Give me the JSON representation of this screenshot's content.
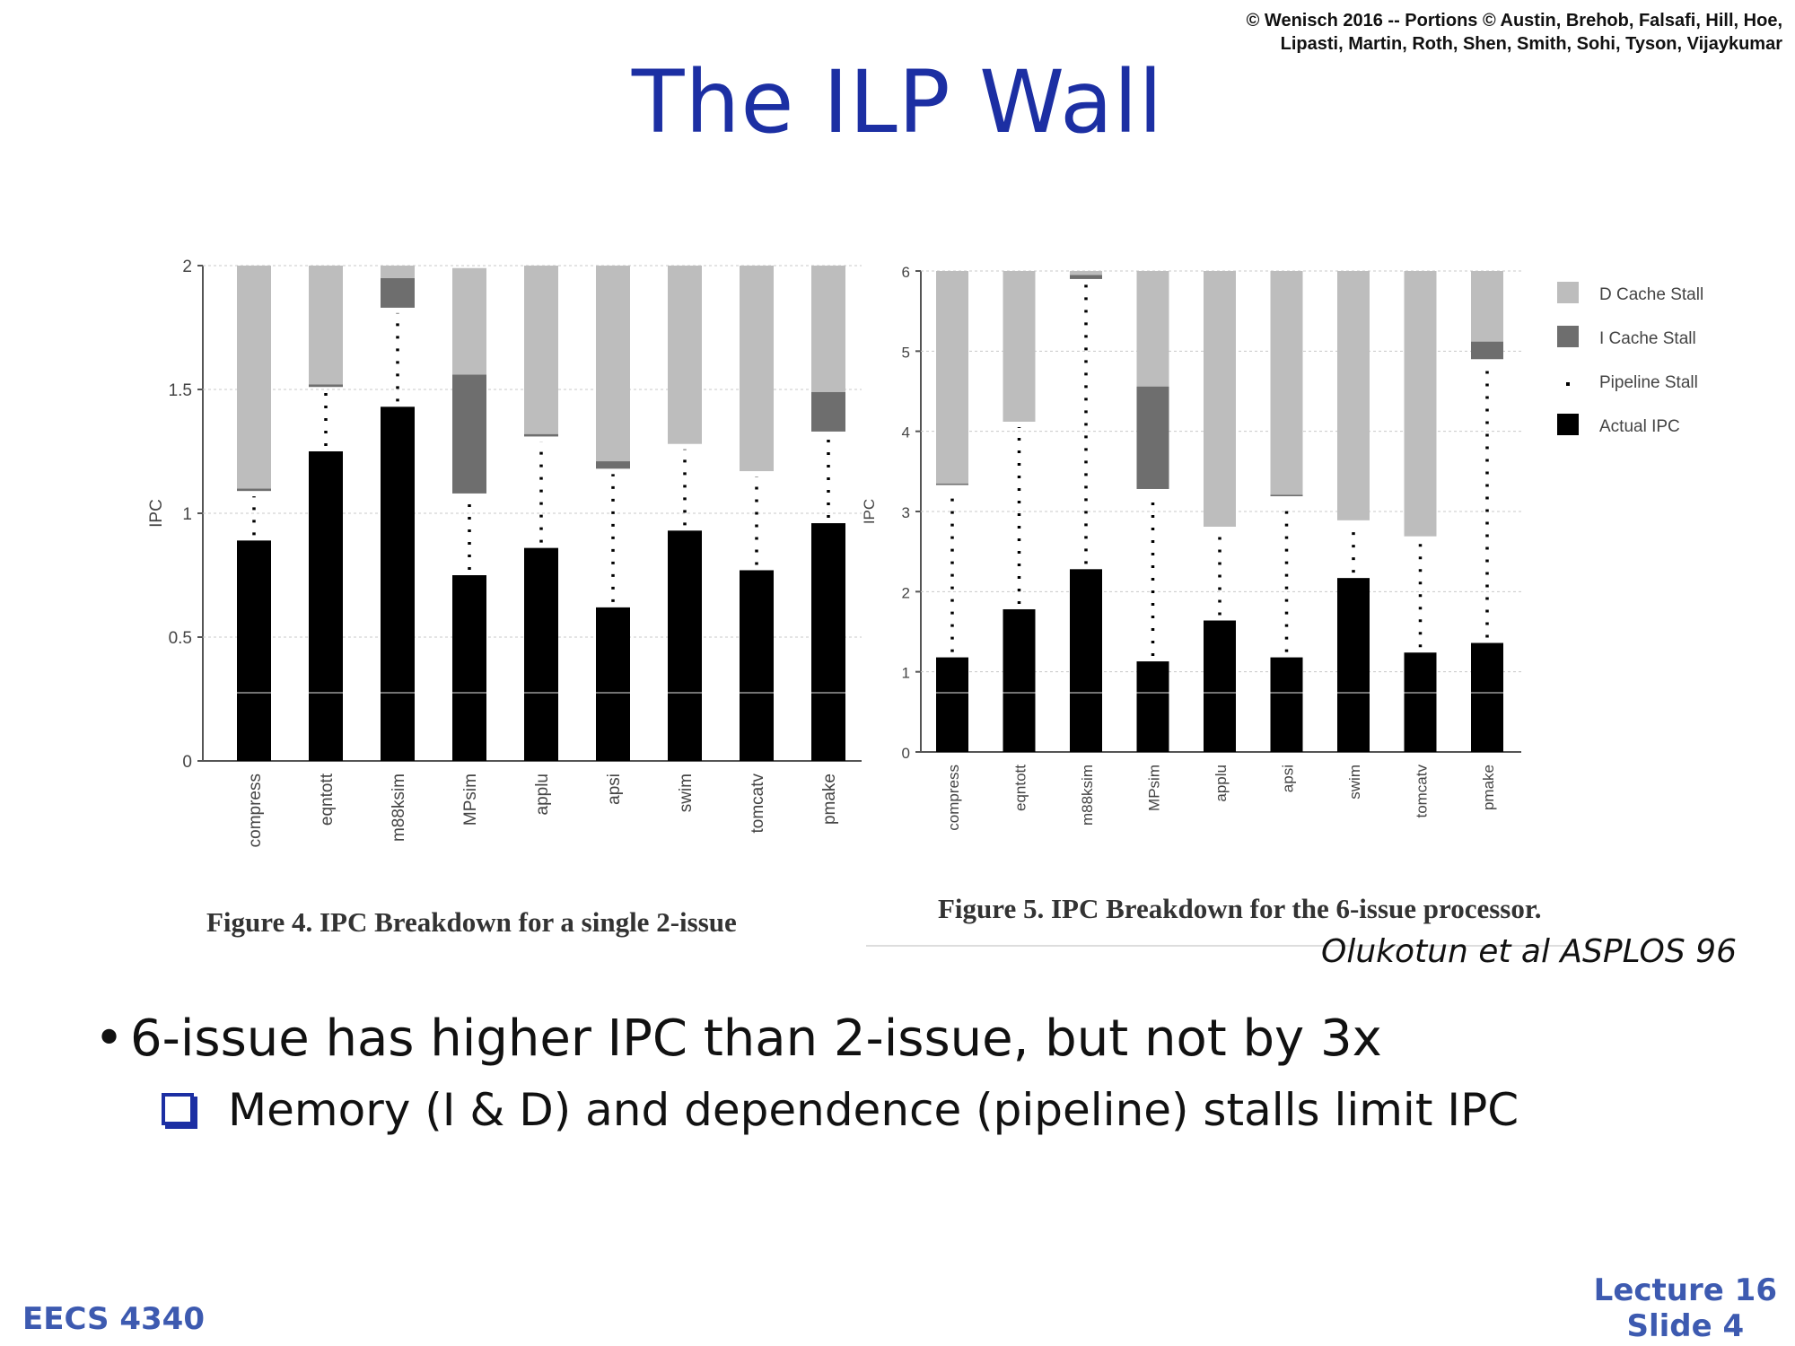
{
  "copyright": {
    "line1": "© Wenisch 2016 -- Portions © Austin, Brehob, Falsafi, Hill, Hoe,",
    "line2": "Lipasti, Martin, Roth, Shen, Smith, Sohi, Tyson, Vijaykumar"
  },
  "title": "The ILP Wall",
  "captions": {
    "fig4": "Figure 4.   IPC Breakdown for a single 2-issue",
    "fig5": "Figure 5.   IPC Breakdown for the 6-issue processor."
  },
  "citation": "Olukotun et al ASPLOS 96",
  "bullets": {
    "main": "6-issue has higher IPC than 2-issue, but not by 3x",
    "sub": "Memory (I & D) and dependence (pipeline) stalls limit IPC"
  },
  "footer": {
    "course": "EECS 4340",
    "lecture": "Lecture 16",
    "slide": "Slide 4"
  },
  "colors": {
    "title": "#1c2fa3",
    "footer": "#3d5ab0",
    "d_cache": "#bdbdbd",
    "i_cache": "#6e6e6e",
    "actual": "#000000"
  },
  "chart_data": [
    {
      "type": "bar",
      "stacked": true,
      "title": "",
      "xlabel": "",
      "ylabel": "IPC",
      "ylim": [
        0,
        2
      ],
      "yticks": [
        "0",
        "0.5",
        "1",
        "1.5",
        "2"
      ],
      "categories": [
        "compress",
        "eqntott",
        "m88ksim",
        "MPsim",
        "applu",
        "apsi",
        "swim",
        "tomcatv",
        "pmake"
      ],
      "series": [
        {
          "name": "Actual IPC",
          "values": [
            0.89,
            1.25,
            1.43,
            0.75,
            0.86,
            0.62,
            0.93,
            0.77,
            0.96
          ]
        },
        {
          "name": "Pipeline Stall",
          "values": [
            0.2,
            0.26,
            0.4,
            0.33,
            0.45,
            0.56,
            0.35,
            0.4,
            0.37
          ]
        },
        {
          "name": "I Cache Stall",
          "values": [
            0.01,
            0.01,
            0.12,
            0.48,
            0.01,
            0.03,
            0.0,
            0.0,
            0.16
          ]
        },
        {
          "name": "D Cache Stall",
          "values": [
            0.9,
            0.48,
            0.05,
            0.43,
            0.68,
            0.79,
            0.72,
            0.83,
            0.51
          ]
        }
      ]
    },
    {
      "type": "bar",
      "stacked": true,
      "title": "",
      "xlabel": "",
      "ylabel": "IPC",
      "ylim": [
        0,
        6
      ],
      "yticks": [
        "0",
        "1",
        "2",
        "3",
        "4",
        "5",
        "6"
      ],
      "legend_position": "right",
      "categories": [
        "compress",
        "eqntott",
        "m88ksim",
        "MPsim",
        "applu",
        "apsi",
        "swim",
        "tomcatv",
        "pmake"
      ],
      "series": [
        {
          "name": "Actual IPC",
          "values": [
            1.18,
            1.78,
            2.28,
            1.13,
            1.64,
            1.18,
            2.17,
            1.24,
            1.36
          ]
        },
        {
          "name": "Pipeline Stall",
          "values": [
            2.15,
            2.34,
            3.62,
            2.15,
            1.17,
            2.01,
            0.72,
            1.45,
            3.54
          ]
        },
        {
          "name": "I Cache Stall",
          "values": [
            0.02,
            0.0,
            0.05,
            1.28,
            0.0,
            0.02,
            0.0,
            0.0,
            0.22
          ]
        },
        {
          "name": "D Cache Stall",
          "values": [
            2.65,
            1.88,
            0.05,
            1.44,
            3.19,
            2.79,
            3.11,
            3.31,
            0.88
          ]
        }
      ]
    }
  ]
}
